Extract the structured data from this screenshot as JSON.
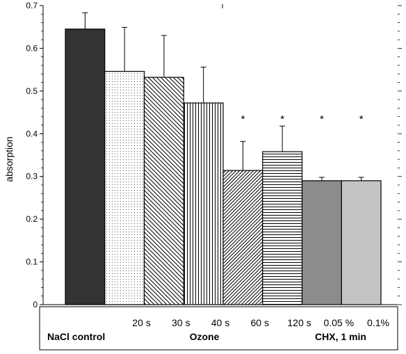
{
  "chart_data": {
    "type": "bar",
    "ylabel": "absorption",
    "ylim": [
      0,
      0.7
    ],
    "yticks": [
      "0",
      "0.1",
      "0.2",
      "0.3",
      "0.4",
      "0.5",
      "0.6",
      "0.7"
    ],
    "grid": false,
    "bars": [
      {
        "label": "",
        "value": 0.645,
        "error": 0.038,
        "significant": false,
        "pattern": "solid-dark"
      },
      {
        "label": "20 s",
        "value": 0.546,
        "error": 0.103,
        "significant": false,
        "pattern": "dots"
      },
      {
        "label": "30 s",
        "value": 0.532,
        "error": 0.098,
        "significant": false,
        "pattern": "diagonal-back"
      },
      {
        "label": "40 s",
        "value": 0.472,
        "error": 0.084,
        "significant": false,
        "pattern": "vertical"
      },
      {
        "label": "60 s",
        "value": 0.314,
        "error": 0.068,
        "significant": true,
        "pattern": "diagonal-forward"
      },
      {
        "label": "120 s",
        "value": 0.358,
        "error": 0.06,
        "significant": true,
        "pattern": "horizontal"
      },
      {
        "label": "0.05 %",
        "value": 0.29,
        "error": 0.008,
        "significant": true,
        "pattern": "solid-mid"
      },
      {
        "label": "0.1%",
        "value": 0.29,
        "error": 0.008,
        "significant": true,
        "pattern": "solid-light"
      }
    ],
    "significance_marker": "*",
    "groups": [
      "NaCl control",
      "Ozone",
      "CHX, 1 min"
    ],
    "colors": {
      "solid-dark": "#333333",
      "solid-mid": "#8c8c8c",
      "solid-light": "#c4c4c4",
      "axis": "#000000"
    }
  }
}
